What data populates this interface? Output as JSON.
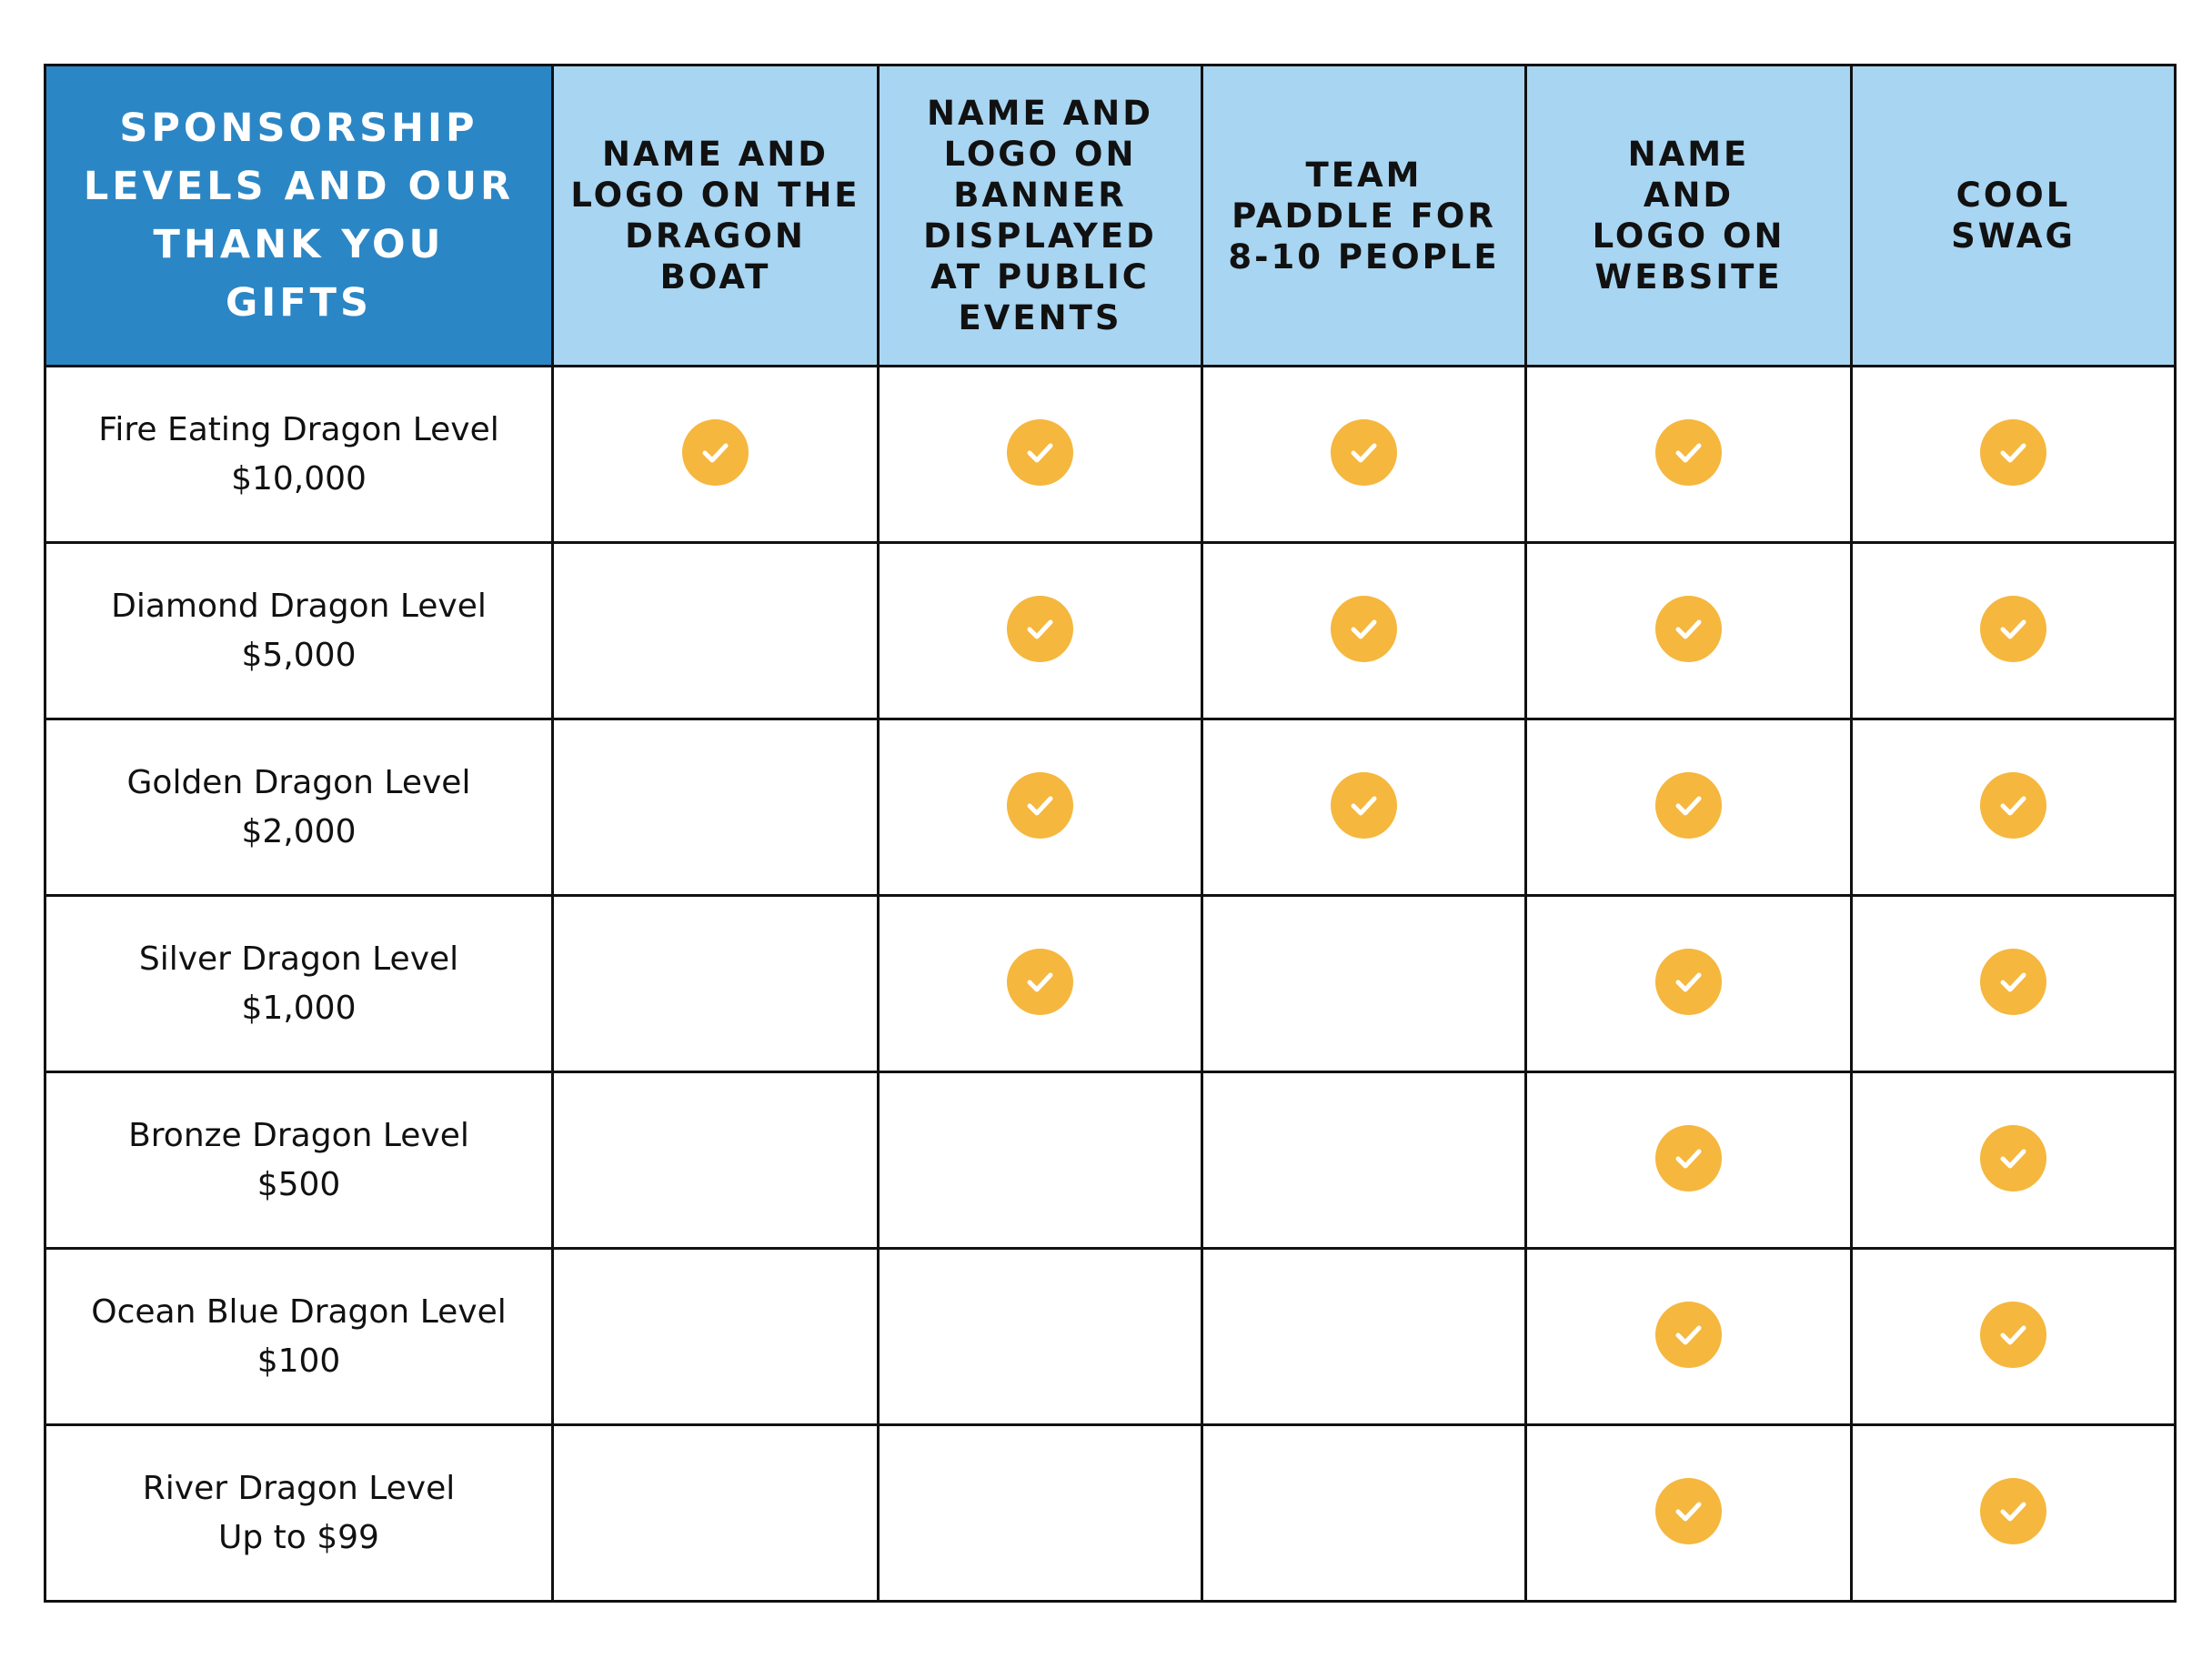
{
  "header": {
    "corner": "SPONSORSHIP LEVELS AND OUR THANK YOU GIFTS",
    "columns": [
      "NAME AND LOGO ON THE DRAGON BOAT",
      "NAME AND LOGO ON BANNER DISPLAYED AT PUBLIC EVENTS",
      "TEAM PADDLE FOR 8-10 PEOPLE",
      "NAME AND LOGO ON WEBSITE",
      "COOL SWAG"
    ]
  },
  "rows": [
    {
      "level": "Fire Eating Dragon Level",
      "amount": "$10,000",
      "benefits": [
        true,
        true,
        true,
        true,
        true
      ]
    },
    {
      "level": "Diamond Dragon Level",
      "amount": "$5,000",
      "benefits": [
        false,
        true,
        true,
        true,
        true
      ]
    },
    {
      "level": "Golden Dragon Level",
      "amount": "$2,000",
      "benefits": [
        false,
        true,
        true,
        true,
        true
      ]
    },
    {
      "level": "Silver Dragon Level",
      "amount": "$1,000",
      "benefits": [
        false,
        true,
        false,
        true,
        true
      ]
    },
    {
      "level": "Bronze Dragon Level",
      "amount": "$500",
      "benefits": [
        false,
        false,
        false,
        true,
        true
      ]
    },
    {
      "level": "Ocean Blue Dragon Level",
      "amount": "$100",
      "benefits": [
        false,
        false,
        false,
        true,
        true
      ]
    },
    {
      "level": "River Dragon Level",
      "amount": "Up to $99",
      "benefits": [
        false,
        false,
        false,
        true,
        true
      ]
    }
  ],
  "icons": {
    "included": "check-circle-icon"
  },
  "colors": {
    "corner_header": "#2B86C5",
    "column_header": "#A8D5F2",
    "check": "#F5B73D"
  }
}
